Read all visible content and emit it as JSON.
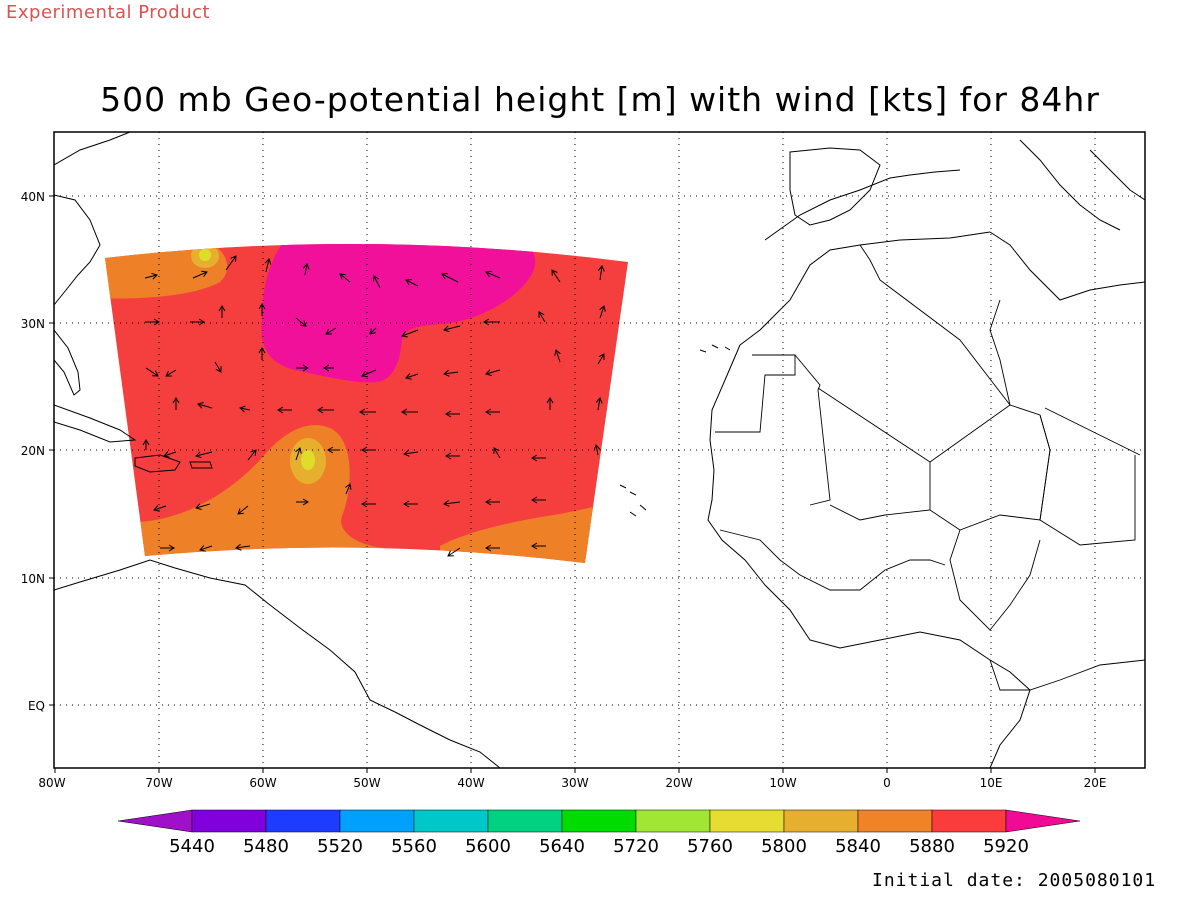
{
  "header": {
    "experimental_label": "Experimental Product",
    "title": "500 mb Geo-potential height [m] with wind [kts] for 84hr",
    "initial_date": "Initial date: 2005080101"
  },
  "map": {
    "longitude_labels": [
      "80W",
      "70W",
      "60W",
      "50W",
      "40W",
      "30W",
      "20W",
      "10W",
      "0",
      "10E",
      "20E"
    ],
    "latitude_labels": [
      "40N",
      "30N",
      "20N",
      "10N",
      "EQ"
    ],
    "shading": [
      {
        "region": "subtropical-high-core",
        "contour_min": 5920,
        "color": "#f0109a"
      },
      {
        "region": "main-field",
        "contour_range": [
          5880,
          5920
        ],
        "color": "#f53f3f"
      },
      {
        "region": "southern-band",
        "contour_range": [
          5840,
          5880
        ],
        "color": "#ee8128"
      },
      {
        "region": "local-minimum",
        "contour_range": [
          5800,
          5840
        ],
        "color": "#e6b02e"
      },
      {
        "region": "local-minimum-center",
        "contour_range": [
          5760,
          5800
        ],
        "color": "#e0dd2a"
      }
    ]
  },
  "colorbar": {
    "colors": [
      "#a010c8",
      "#8200dc",
      "#1e3cff",
      "#00a0ff",
      "#00c8c8",
      "#00d282",
      "#00dc00",
      "#a0e632",
      "#e6dc32",
      "#e6af2d",
      "#f08228",
      "#fa3c3c",
      "#f00a96"
    ],
    "labels": [
      "5440",
      "5480",
      "5520",
      "5560",
      "5600",
      "5640",
      "5720",
      "5760",
      "5800",
      "5840",
      "5880",
      "5920"
    ]
  }
}
